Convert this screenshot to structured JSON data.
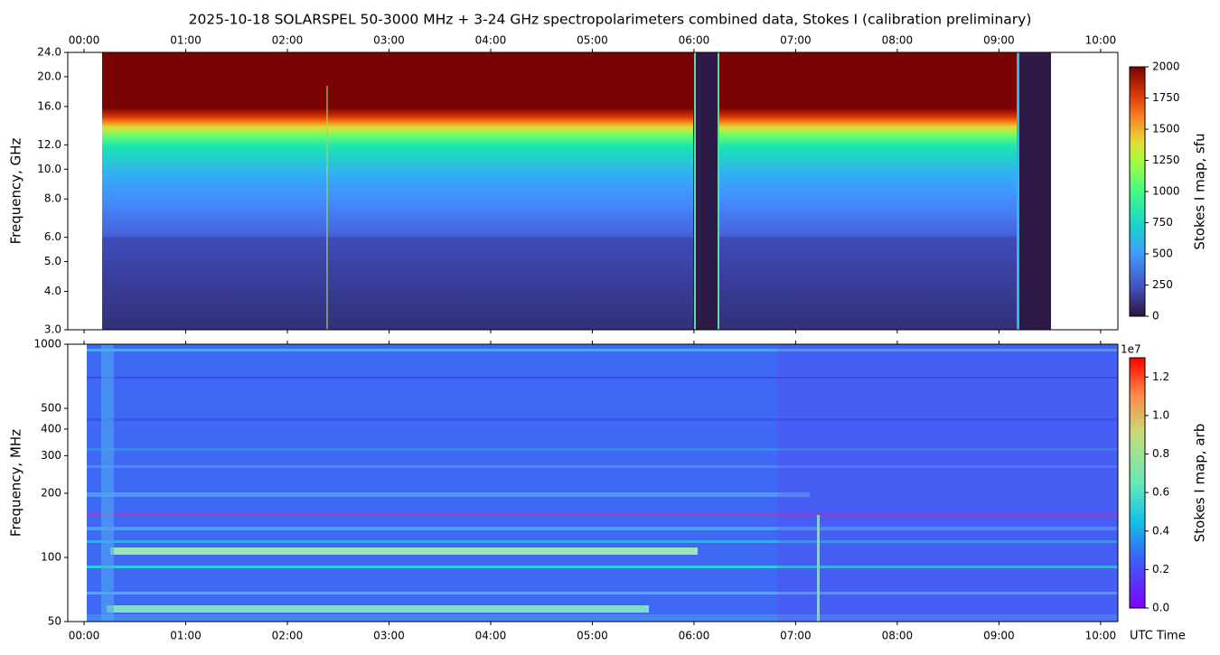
{
  "chart_data": [
    {
      "type": "heatmap",
      "title": "2025-10-18  SOLARSPEL  50-3000 MHz  +  3-24 GHz  spectropolarimeters combined data,  Stokes I  (calibration preliminary)",
      "ylabel": "Frequency, GHz",
      "yscale": "log",
      "xtick_position": "top",
      "xlim": [
        -0.16,
        10.17
      ],
      "xticks": [
        {
          "value": 0,
          "label": "00:00"
        },
        {
          "value": 1,
          "label": "01:00"
        },
        {
          "value": 2,
          "label": "02:00"
        },
        {
          "value": 3,
          "label": "03:00"
        },
        {
          "value": 4,
          "label": "04:00"
        },
        {
          "value": 5,
          "label": "05:00"
        },
        {
          "value": 6,
          "label": "06:00"
        },
        {
          "value": 7,
          "label": "07:00"
        },
        {
          "value": 8,
          "label": "08:00"
        },
        {
          "value": 9,
          "label": "09:00"
        },
        {
          "value": 10,
          "label": "10:00"
        }
      ],
      "ylim": [
        3,
        24
      ],
      "yticks": [
        {
          "value": 3,
          "label": "3.0"
        },
        {
          "value": 4,
          "label": "4.0"
        },
        {
          "value": 5,
          "label": "5.0"
        },
        {
          "value": 6,
          "label": "6.0"
        },
        {
          "value": 8,
          "label": "8.0"
        },
        {
          "value": 10,
          "label": "10.0"
        },
        {
          "value": 12,
          "label": "12.0"
        },
        {
          "value": 16,
          "label": "16.0"
        },
        {
          "value": 20,
          "label": "20.0"
        },
        {
          "value": 24,
          "label": "24.0"
        }
      ],
      "colorbar": {
        "label": "Stokes I map, sfu",
        "lim": [
          0,
          2000
        ],
        "ticks": [
          0,
          250,
          500,
          750,
          1000,
          1250,
          1500,
          1750,
          2000
        ]
      }
    },
    {
      "type": "heatmap",
      "ylabel": "Frequency, MHz",
      "xlabel": "UTC Time",
      "yscale": "log",
      "xtick_position": "bottom",
      "xlim": [
        -0.16,
        10.17
      ],
      "xticks": [
        {
          "value": 0,
          "label": "00:00"
        },
        {
          "value": 1,
          "label": "01:00"
        },
        {
          "value": 2,
          "label": "02:00"
        },
        {
          "value": 3,
          "label": "03:00"
        },
        {
          "value": 4,
          "label": "04:00"
        },
        {
          "value": 5,
          "label": "05:00"
        },
        {
          "value": 6,
          "label": "06:00"
        },
        {
          "value": 7,
          "label": "07:00"
        },
        {
          "value": 8,
          "label": "08:00"
        },
        {
          "value": 9,
          "label": "09:00"
        },
        {
          "value": 10,
          "label": "10:00"
        }
      ],
      "ylim": [
        50,
        1000
      ],
      "yticks": [
        50,
        100,
        200,
        300,
        400,
        500,
        1000
      ],
      "colorbar": {
        "label": "Stokes I map, arb",
        "offset_label": "1e7",
        "lim": [
          0,
          13000000
        ],
        "ticks": [
          {
            "value": 0,
            "label": "0.0"
          },
          {
            "value": 2000000,
            "label": "0.2"
          },
          {
            "value": 4000000,
            "label": "0.4"
          },
          {
            "value": 6000000,
            "label": "0.6"
          },
          {
            "value": 8000000,
            "label": "0.8"
          },
          {
            "value": 10000000,
            "label": "1.0"
          },
          {
            "value": 12000000,
            "label": "1.2"
          }
        ]
      }
    }
  ]
}
